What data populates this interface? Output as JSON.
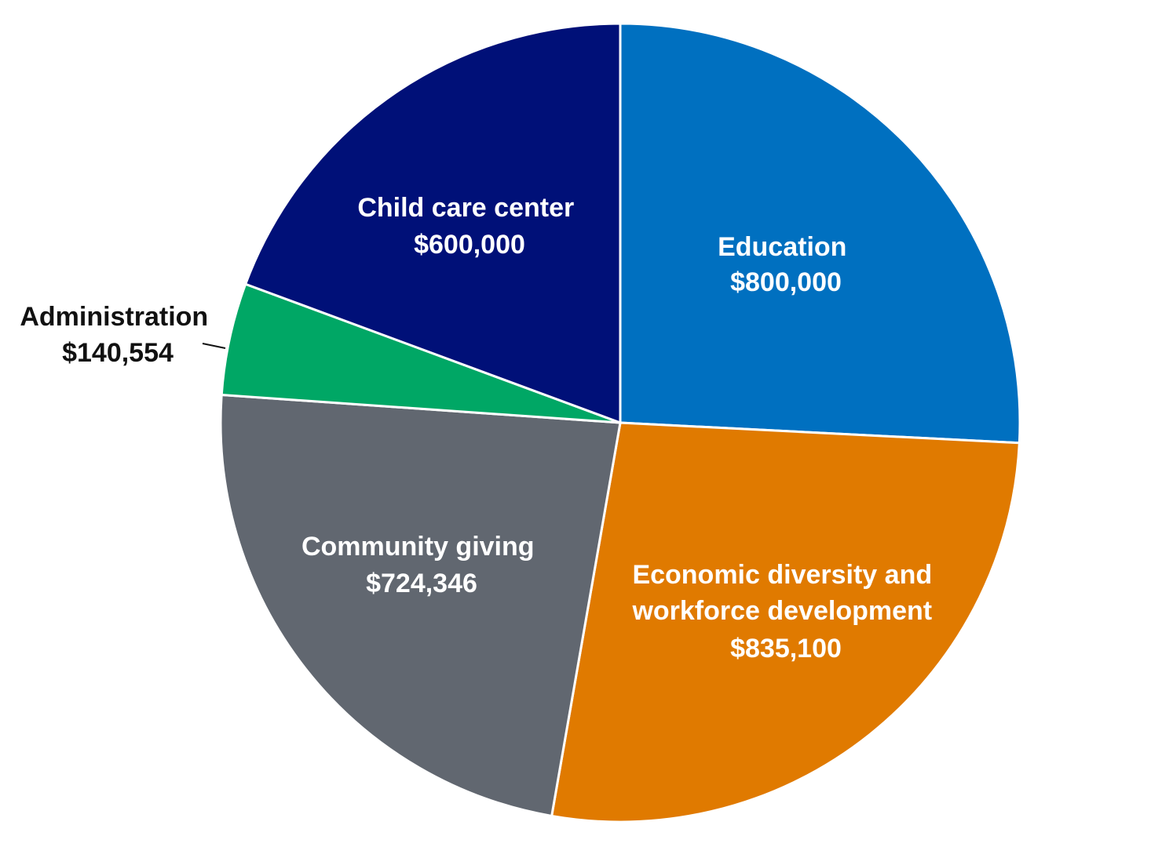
{
  "chart_data": {
    "type": "pie",
    "title": "",
    "slices": [
      {
        "label": "Education",
        "amount": "$800,000",
        "value": 800000,
        "color": "#0070c0",
        "text_color": "#ffffff"
      },
      {
        "label": "Economic diversity and workforce development",
        "amount": "$835,100",
        "value": 835100,
        "color": "#e07a00",
        "text_color": "#ffffff"
      },
      {
        "label": "Community giving",
        "amount": "$724,346",
        "value": 724346,
        "color": "#616770",
        "text_color": "#ffffff"
      },
      {
        "label": "Administration",
        "amount": "$140,554",
        "value": 140554,
        "color": "#00a765",
        "text_color": "#111111"
      },
      {
        "label": "Child care center",
        "amount": "$600,000",
        "value": 600000,
        "color": "#001078",
        "text_color": "#ffffff"
      }
    ]
  }
}
